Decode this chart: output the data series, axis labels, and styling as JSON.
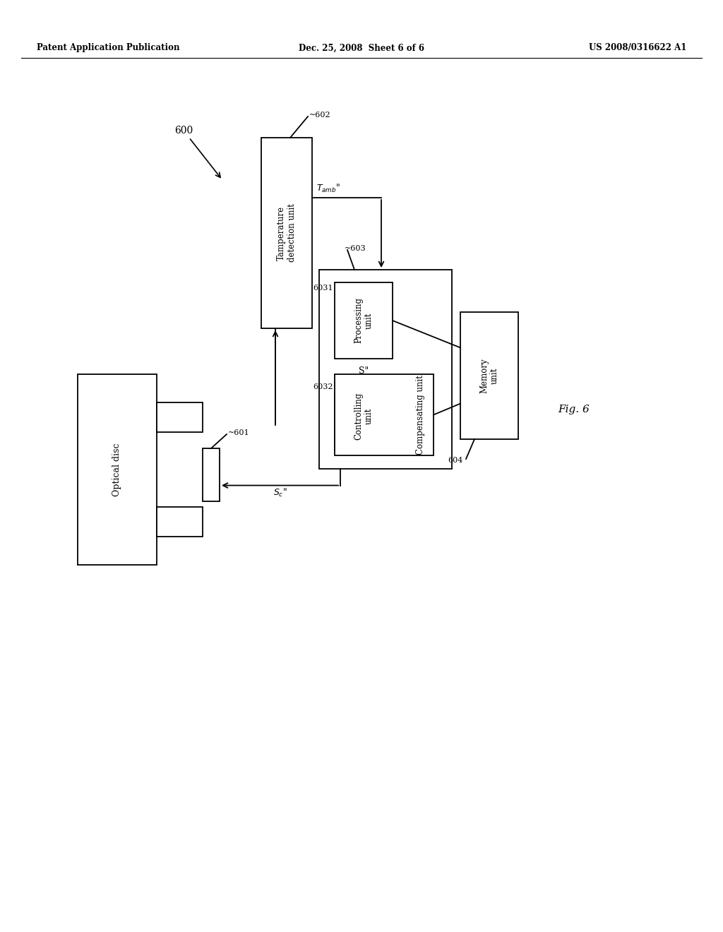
{
  "title_left": "Patent Application Publication",
  "title_center": "Dec. 25, 2008  Sheet 6 of 6",
  "title_right": "US 2008/0316622 A1",
  "fig_label": "Fig. 6",
  "bg_color": "#ffffff"
}
